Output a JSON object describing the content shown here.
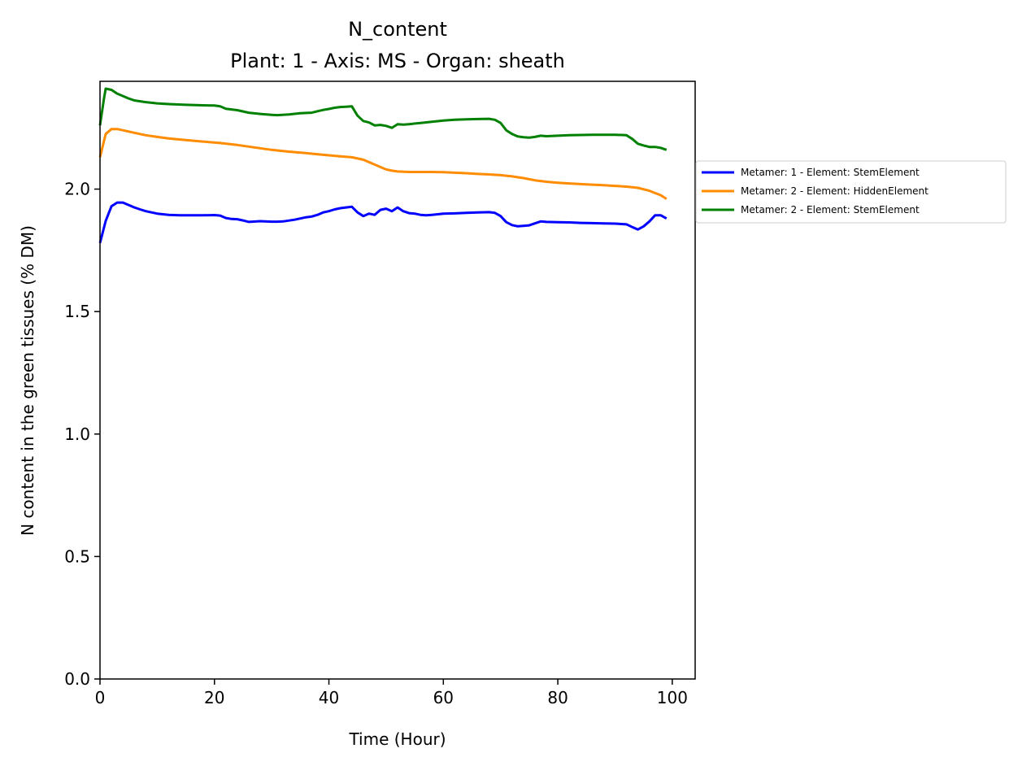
{
  "chart_data": {
    "type": "line",
    "title": "N_content",
    "subtitle": "Plant: 1 - Axis: MS - Organ: sheath",
    "xlabel": "Time (Hour)",
    "ylabel": "N content in the green tissues (% DM)",
    "xlim": [
      0,
      104
    ],
    "ylim": [
      0,
      2.44
    ],
    "xticks": [
      0,
      20,
      40,
      60,
      80,
      100
    ],
    "xtick_labels": [
      "0",
      "20",
      "40",
      "60",
      "80",
      "100"
    ],
    "yticks": [
      0.0,
      0.5,
      1.0,
      1.5,
      2.0
    ],
    "ytick_labels": [
      "0.0",
      "0.5",
      "1.0",
      "1.5",
      "2.0"
    ],
    "grid": false,
    "legend_position": "outside-right",
    "series": [
      {
        "name": "Metamer: 1 - Element: StemElement",
        "color": "#0000ff",
        "x": [
          0,
          1,
          2,
          3,
          4,
          5,
          6,
          7,
          8,
          10,
          12,
          14,
          16,
          18,
          20,
          21,
          22,
          23,
          24,
          25,
          26,
          28,
          30,
          31,
          32,
          34,
          35,
          36,
          37,
          38,
          39,
          40,
          41,
          42,
          43,
          44,
          45,
          46,
          47,
          48,
          49,
          50,
          51,
          52,
          53,
          54,
          55,
          56,
          57,
          58,
          60,
          62,
          64,
          66,
          68,
          69,
          70,
          71,
          72,
          73,
          74,
          75,
          76,
          77,
          78,
          80,
          82,
          84,
          86,
          88,
          90,
          92,
          93,
          94,
          95,
          96,
          97,
          98,
          99
        ],
        "values": [
          1.78,
          1.87,
          1.93,
          1.945,
          1.945,
          1.935,
          1.925,
          1.917,
          1.91,
          1.9,
          1.895,
          1.893,
          1.893,
          1.893,
          1.894,
          1.892,
          1.882,
          1.878,
          1.877,
          1.872,
          1.866,
          1.869,
          1.867,
          1.867,
          1.868,
          1.875,
          1.88,
          1.885,
          1.888,
          1.895,
          1.905,
          1.91,
          1.917,
          1.922,
          1.925,
          1.928,
          1.905,
          1.89,
          1.9,
          1.895,
          1.915,
          1.92,
          1.91,
          1.925,
          1.91,
          1.902,
          1.9,
          1.895,
          1.893,
          1.895,
          1.9,
          1.901,
          1.903,
          1.905,
          1.906,
          1.903,
          1.89,
          1.865,
          1.853,
          1.848,
          1.85,
          1.852,
          1.86,
          1.868,
          1.866,
          1.865,
          1.864,
          1.862,
          1.861,
          1.86,
          1.859,
          1.856,
          1.845,
          1.835,
          1.848,
          1.868,
          1.893,
          1.893,
          1.88
        ]
      },
      {
        "name": "Metamer: 2 - Element: HiddenElement",
        "color": "#ff8c00",
        "x": [
          0,
          1,
          2,
          3,
          4,
          6,
          8,
          10,
          12,
          15,
          18,
          21,
          24,
          27,
          30,
          33,
          36,
          39,
          42,
          44,
          46,
          48,
          50,
          51,
          52,
          54,
          56,
          58,
          60,
          62,
          64,
          66,
          68,
          70,
          72,
          74,
          76,
          78,
          80,
          82,
          85,
          88,
          90,
          92,
          94,
          96,
          98,
          99
        ],
        "values": [
          2.13,
          2.225,
          2.245,
          2.245,
          2.24,
          2.23,
          2.22,
          2.213,
          2.207,
          2.2,
          2.194,
          2.188,
          2.18,
          2.17,
          2.16,
          2.153,
          2.147,
          2.14,
          2.134,
          2.13,
          2.12,
          2.1,
          2.08,
          2.075,
          2.072,
          2.07,
          2.07,
          2.07,
          2.069,
          2.067,
          2.065,
          2.062,
          2.06,
          2.057,
          2.052,
          2.045,
          2.036,
          2.03,
          2.026,
          2.023,
          2.019,
          2.016,
          2.013,
          2.01,
          2.005,
          1.993,
          1.975,
          1.96
        ]
      },
      {
        "name": "Metamer: 2 - Element: StemElement",
        "color": "#008000",
        "x": [
          0,
          0.7,
          1,
          2,
          3,
          4,
          5,
          6,
          8,
          10,
          12,
          15,
          18,
          20,
          21,
          22,
          24,
          26,
          28,
          30,
          31,
          33,
          35,
          37,
          38,
          39,
          40,
          41,
          42,
          43,
          44,
          45,
          46,
          47,
          48,
          49,
          50,
          51,
          52,
          53,
          54,
          56,
          58,
          60,
          62,
          64,
          66,
          68,
          69,
          70,
          71,
          72,
          73,
          74,
          75,
          76,
          77,
          78,
          80,
          82,
          84,
          86,
          88,
          90,
          92,
          93,
          94,
          95,
          96,
          97,
          98,
          99
        ],
        "values": [
          2.26,
          2.37,
          2.41,
          2.405,
          2.39,
          2.38,
          2.37,
          2.362,
          2.355,
          2.35,
          2.347,
          2.344,
          2.342,
          2.341,
          2.338,
          2.328,
          2.322,
          2.312,
          2.307,
          2.303,
          2.302,
          2.305,
          2.31,
          2.312,
          2.318,
          2.323,
          2.327,
          2.332,
          2.335,
          2.336,
          2.338,
          2.3,
          2.278,
          2.272,
          2.26,
          2.262,
          2.258,
          2.25,
          2.265,
          2.263,
          2.265,
          2.27,
          2.275,
          2.28,
          2.283,
          2.285,
          2.286,
          2.287,
          2.283,
          2.27,
          2.24,
          2.225,
          2.215,
          2.212,
          2.21,
          2.213,
          2.218,
          2.216,
          2.218,
          2.22,
          2.221,
          2.222,
          2.222,
          2.222,
          2.22,
          2.205,
          2.185,
          2.178,
          2.172,
          2.172,
          2.168,
          2.16
        ]
      }
    ]
  }
}
